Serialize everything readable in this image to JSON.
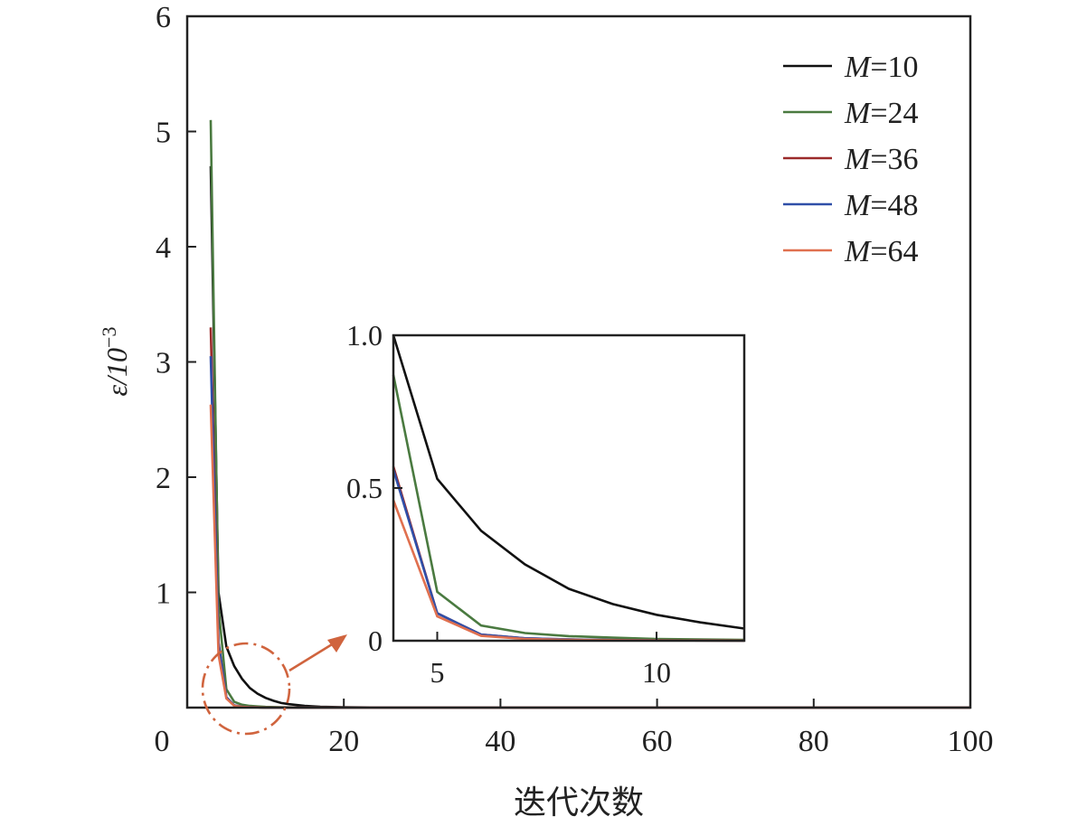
{
  "chart_data": [
    {
      "type": "line",
      "xlabel": "迭代次数",
      "ylabel": "ε/10",
      "ylabel_exponent": "−3",
      "xlim": [
        0,
        100
      ],
      "ylim": [
        0,
        6
      ],
      "xticks": [
        0,
        20,
        40,
        60,
        80,
        100
      ],
      "yticks": [
        1,
        2,
        3,
        4,
        5,
        6
      ],
      "grid": false,
      "legend_position": "top-right",
      "legend_prefix": "M",
      "series": [
        {
          "name": "=10",
          "color": "#111111",
          "x": [
            3,
            4,
            5,
            6,
            7,
            8,
            9,
            10,
            11,
            12,
            13,
            15,
            17,
            20,
            25,
            30,
            40,
            50,
            60,
            80,
            100
          ],
          "y": [
            4.7,
            1.0,
            0.53,
            0.36,
            0.25,
            0.17,
            0.12,
            0.085,
            0.06,
            0.04,
            0.03,
            0.015,
            0.008,
            0.003,
            0.001,
            0,
            0,
            0,
            0,
            0,
            0
          ]
        },
        {
          "name": "=24",
          "color": "#4a7a40",
          "x": [
            3,
            4,
            5,
            6,
            7,
            8,
            9,
            10,
            12,
            15,
            20,
            30,
            40,
            60,
            80,
            100
          ],
          "y": [
            5.1,
            0.87,
            0.16,
            0.05,
            0.025,
            0.015,
            0.01,
            0.006,
            0.003,
            0.001,
            0,
            0,
            0,
            0,
            0,
            0
          ]
        },
        {
          "name": "=36",
          "color": "#9b2a2a",
          "x": [
            3,
            4,
            5,
            6,
            7,
            8,
            10,
            15,
            20,
            30,
            40,
            60,
            80,
            100
          ],
          "y": [
            3.3,
            0.57,
            0.09,
            0.02,
            0.008,
            0.004,
            0.001,
            0,
            0,
            0,
            0,
            0,
            0,
            0
          ]
        },
        {
          "name": "=48",
          "color": "#2f4fa8",
          "x": [
            3,
            4,
            5,
            6,
            7,
            8,
            10,
            15,
            20,
            30,
            40,
            60,
            80,
            100
          ],
          "y": [
            3.05,
            0.56,
            0.09,
            0.02,
            0.008,
            0.004,
            0.001,
            0,
            0,
            0,
            0,
            0,
            0,
            0
          ]
        },
        {
          "name": "=64",
          "color": "#e0704f",
          "x": [
            3,
            4,
            5,
            6,
            7,
            8,
            10,
            15,
            20,
            30,
            40,
            60,
            80,
            100
          ],
          "y": [
            2.63,
            0.46,
            0.08,
            0.016,
            0.006,
            0.003,
            0.001,
            0,
            0,
            0,
            0,
            0,
            0,
            0
          ]
        }
      ]
    },
    {
      "type": "line",
      "title": "",
      "xlim": [
        4,
        12
      ],
      "ylim": [
        0,
        1.0
      ],
      "xticks": [
        5,
        10
      ],
      "yticks": [
        "0",
        "0.5",
        "1.0"
      ],
      "grid": false,
      "series_ref": "same series as main chart, zoomed on iterations 4–12"
    }
  ],
  "annotation": {
    "color": "#d0643e",
    "description_marker": "dash-dot ellipse with arrow to inset"
  }
}
